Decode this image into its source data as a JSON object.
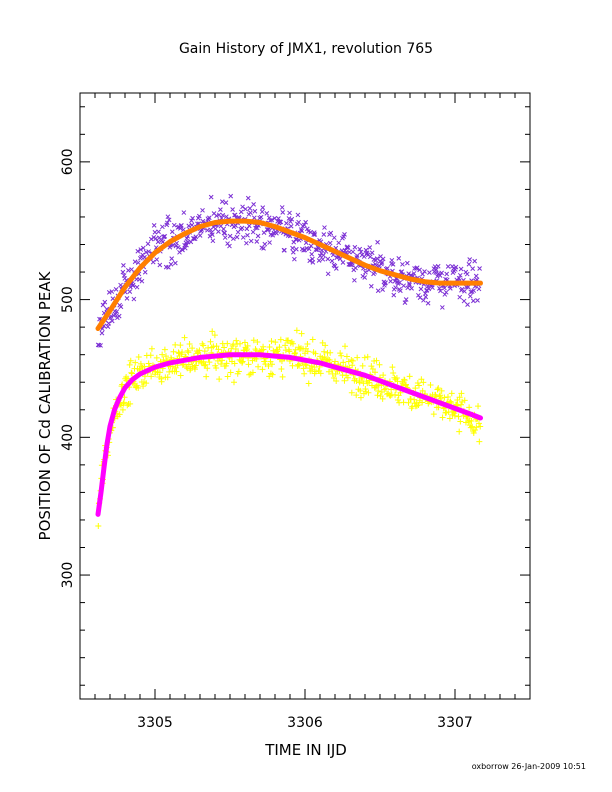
{
  "chart_data": {
    "type": "scatter",
    "title": "Gain History of JMX1, revolution 765",
    "xlabel": "TIME IN IJD",
    "ylabel": "POSITION OF Cd CALIBRATION PEAK",
    "xlim": [
      3304.5,
      3307.5
    ],
    "ylim": [
      210,
      650
    ],
    "x_ticks": [
      3305,
      3306,
      3307
    ],
    "y_ticks": [
      300,
      400,
      500,
      600
    ],
    "grid": false,
    "legend": "none",
    "series": [
      {
        "marker": "x",
        "color": "#7b2fd4",
        "x_range": [
          3304.62,
          3307.17
        ],
        "trend_x": [
          3304.62,
          3304.7,
          3304.8,
          3304.9,
          3305.0,
          3305.2,
          3305.4,
          3305.6,
          3305.8,
          3306.0,
          3306.2,
          3306.4,
          3306.6,
          3306.8,
          3307.0,
          3307.17
        ],
        "trend_y": [
          478,
          492,
          510,
          525,
          535,
          548,
          556,
          558,
          553,
          545,
          535,
          525,
          517,
          513,
          512,
          512
        ],
        "scatter_sigma": 15
      },
      {
        "marker": "+",
        "color": "#ffff00",
        "x_range": [
          3304.62,
          3307.17
        ],
        "trend_x": [
          3304.62,
          3304.65,
          3304.7,
          3304.75,
          3304.8,
          3304.9,
          3305.0,
          3305.2,
          3305.4,
          3305.6,
          3305.8,
          3306.0,
          3306.2,
          3306.4,
          3306.6,
          3306.8,
          3307.0,
          3307.17
        ],
        "trend_y": [
          343,
          372,
          405,
          425,
          435,
          446,
          452,
          457,
          459,
          460,
          460,
          458,
          452,
          445,
          437,
          429,
          420,
          410
        ],
        "scatter_sigma": 14
      }
    ],
    "fits": [
      {
        "color": "#ff7f00",
        "x": [
          3304.62,
          3304.7,
          3304.8,
          3304.9,
          3305.0,
          3305.1,
          3305.2,
          3305.3,
          3305.4,
          3305.5,
          3305.6,
          3305.7,
          3305.8,
          3305.9,
          3306.0,
          3306.1,
          3306.2,
          3306.3,
          3306.4,
          3306.5,
          3306.6,
          3306.7,
          3306.8,
          3306.9,
          3307.0,
          3307.1,
          3307.17
        ],
        "y": [
          479,
          492,
          509,
          523,
          534,
          542,
          548,
          553,
          556,
          557,
          557,
          556,
          553,
          549,
          545,
          540,
          535,
          530,
          525,
          521,
          518,
          515,
          513,
          512,
          512,
          512,
          512
        ]
      },
      {
        "color": "#ff00ff",
        "x": [
          3304.62,
          3304.64,
          3304.66,
          3304.68,
          3304.7,
          3304.73,
          3304.76,
          3304.8,
          3304.85,
          3304.9,
          3305.0,
          3305.1,
          3305.2,
          3305.3,
          3305.4,
          3305.5,
          3305.6,
          3305.7,
          3305.8,
          3305.9,
          3306.0,
          3306.1,
          3306.2,
          3306.3,
          3306.4,
          3306.5,
          3306.6,
          3306.7,
          3306.8,
          3306.9,
          3307.0,
          3307.1,
          3307.17
        ],
        "y": [
          344,
          360,
          378,
          395,
          408,
          420,
          428,
          436,
          442,
          446,
          451,
          454,
          456,
          458,
          459,
          460,
          460,
          460,
          459,
          458,
          456,
          454,
          451,
          448,
          445,
          441,
          437,
          433,
          429,
          425,
          421,
          417,
          414
        ]
      }
    ]
  },
  "footer": {
    "credit": "oxborrow 26-Jan-2009 10:51"
  }
}
